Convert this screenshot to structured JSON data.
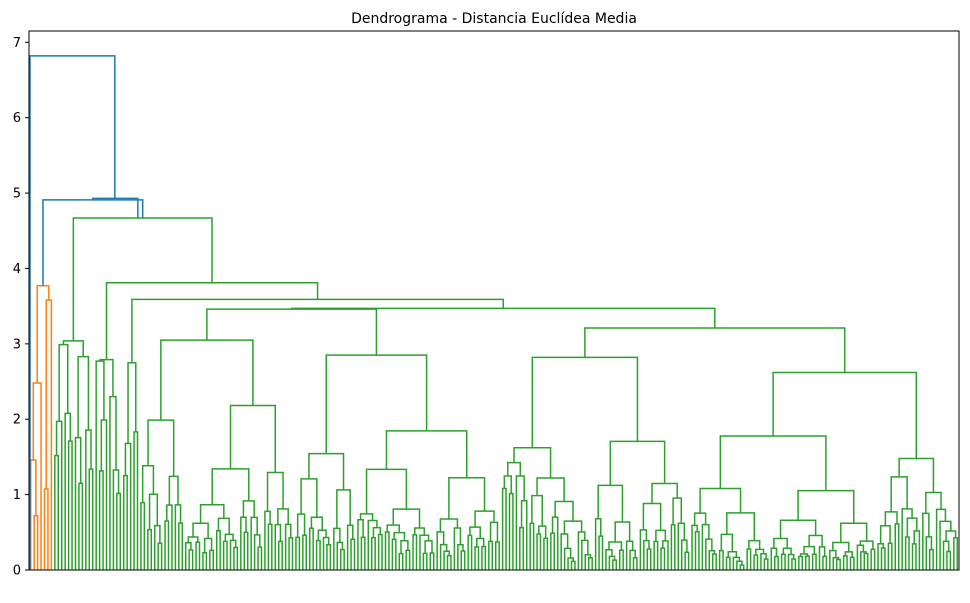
{
  "chart_data": {
    "type": "dendrogram",
    "title": "Dendrograma - Distancia Euclídea Media",
    "xlabel": "",
    "ylabel": "",
    "ylim": [
      0,
      7.15
    ],
    "yticks": [
      0,
      1,
      2,
      3,
      4,
      5,
      6,
      7
    ],
    "grid": false,
    "colors": {
      "root_links": "#1f77b4",
      "cluster_orange": "#ff7f0e",
      "cluster_green": "#2ca02c",
      "axes": "#000000"
    },
    "notes_leaf_count": 270,
    "clusters": [
      {
        "name": "orange",
        "leaf_count": 5,
        "top_height": 3.77,
        "merges": [
          {
            "height": 3.77
          },
          {
            "height": 3.58
          },
          {
            "height": 2.48
          },
          {
            "height": 1.46
          },
          {
            "height": 0.72
          }
        ]
      },
      {
        "name": "green",
        "leaf_count": 265,
        "top_height": 4.67
      }
    ],
    "root_merges": [
      {
        "height": 6.82
      },
      {
        "height": 4.93
      },
      {
        "height": 4.91
      }
    ],
    "major_green_merges": [
      {
        "height": 4.67
      },
      {
        "height": 4.2
      },
      {
        "height": 3.81
      },
      {
        "height": 3.59
      },
      {
        "height": 3.46
      },
      {
        "height": 3.21
      },
      {
        "height": 3.05
      },
      {
        "height": 2.99
      },
      {
        "height": 2.88
      },
      {
        "height": 2.83
      },
      {
        "height": 2.77
      },
      {
        "height": 2.75
      },
      {
        "height": 2.72
      },
      {
        "height": 2.62
      },
      {
        "height": 2.55
      },
      {
        "height": 2.48
      },
      {
        "height": 2.41
      },
      {
        "height": 2.35
      },
      {
        "height": 2.3
      },
      {
        "height": 2.22
      },
      {
        "height": 2.17
      }
    ]
  }
}
